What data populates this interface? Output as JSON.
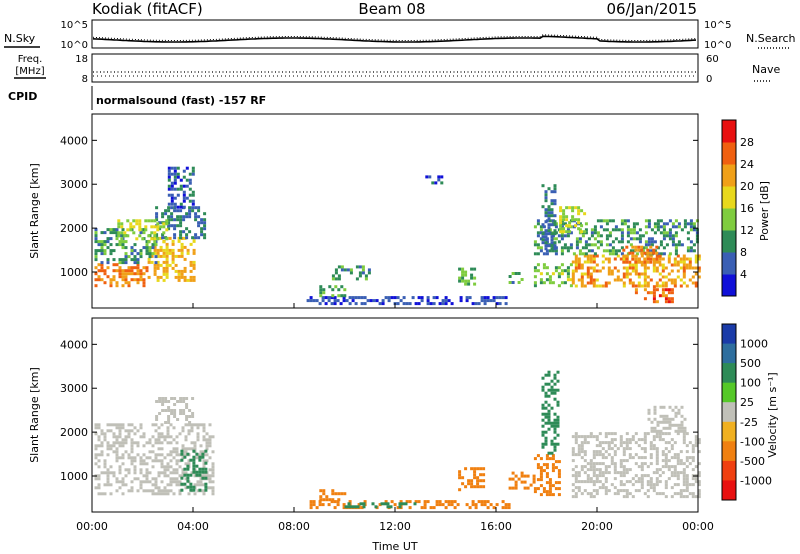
{
  "header": {
    "station": "Kodiak (fitACF)",
    "beam": "Beam 08",
    "date": "06/Jan/2015"
  },
  "status_panels": {
    "nsky_label": "N.Sky",
    "nsearch_label": "N.Search",
    "freq_label_line1": "Freq.",
    "freq_label_line2": "[MHz]",
    "nave_label": "Nave",
    "cpid_label": "CPID",
    "noise_ticks": [
      "10^5",
      "10^0"
    ],
    "freq_ticks": [
      "18",
      "8"
    ],
    "nave_ticks": [
      "60",
      "0"
    ],
    "cpid_text": "normalsound (fast) -157 RF"
  },
  "chart_data": [
    {
      "type": "heatmap",
      "title": "",
      "xlabel": "",
      "ylabel": "Slant Range [km]",
      "xlim": [
        0,
        24
      ],
      "ylim": [
        180,
        4600
      ],
      "x_ticks": [
        "00:00",
        "04:00",
        "08:00",
        "12:00",
        "16:00",
        "20:00",
        "00:00"
      ],
      "y_ticks": [
        "1000",
        "2000",
        "3000",
        "4000"
      ],
      "colorbar": {
        "label": "Power [dB]",
        "ticks": [
          "4",
          "8",
          "12",
          "16",
          "20",
          "24",
          "28"
        ],
        "colors": [
          "#1010d8",
          "#3a5fb4",
          "#2e8b57",
          "#7fcc3f",
          "#e8d81c",
          "#f0a018",
          "#f06010",
          "#e81010"
        ]
      },
      "regions": [
        {
          "t0": 0.1,
          "t1": 2.2,
          "r0": 700,
          "r1": 1200,
          "value": 26
        },
        {
          "t0": 2.2,
          "t1": 4.0,
          "r0": 800,
          "r1": 1800,
          "value": 22
        },
        {
          "t0": 0.1,
          "t1": 2.5,
          "r0": 1200,
          "r1": 2000,
          "value": 12
        },
        {
          "t0": 2.5,
          "t1": 4.5,
          "r0": 1800,
          "r1": 2500,
          "value": 10
        },
        {
          "t0": 3.0,
          "t1": 4.0,
          "r0": 2500,
          "r1": 3400,
          "value": 8
        },
        {
          "t0": 1.0,
          "t1": 3.0,
          "r0": 1700,
          "r1": 2200,
          "value": 18
        },
        {
          "t0": 8.5,
          "t1": 16.5,
          "r0": 250,
          "r1": 450,
          "value": 6
        },
        {
          "t0": 9.0,
          "t1": 10.0,
          "r0": 450,
          "r1": 700,
          "value": 14
        },
        {
          "t0": 9.5,
          "t1": 11.0,
          "r0": 850,
          "r1": 1150,
          "value": 12
        },
        {
          "t0": 13.2,
          "t1": 13.8,
          "r0": 3000,
          "r1": 3200,
          "value": 8
        },
        {
          "t0": 14.5,
          "t1": 15.2,
          "r0": 750,
          "r1": 1100,
          "value": 14
        },
        {
          "t0": 16.5,
          "t1": 17.0,
          "r0": 700,
          "r1": 1000,
          "value": 12
        },
        {
          "t0": 17.5,
          "t1": 19.0,
          "r0": 700,
          "r1": 1200,
          "value": 16
        },
        {
          "t0": 19.0,
          "t1": 24.0,
          "r0": 700,
          "r1": 1400,
          "value": 24
        },
        {
          "t0": 17.5,
          "t1": 24.0,
          "r0": 1400,
          "r1": 2200,
          "value": 12
        },
        {
          "t0": 18.5,
          "t1": 19.5,
          "r0": 1900,
          "r1": 2500,
          "value": 18
        },
        {
          "t0": 21.5,
          "t1": 23.0,
          "r0": 300,
          "r1": 700,
          "value": 28
        },
        {
          "t0": 21.0,
          "t1": 22.5,
          "r0": 1200,
          "r1": 1600,
          "value": 26
        },
        {
          "t0": 17.8,
          "t1": 18.3,
          "r0": 1500,
          "r1": 3000,
          "value": 10
        }
      ]
    },
    {
      "type": "heatmap",
      "title": "",
      "xlabel": "Time UT",
      "ylabel": "Slant Range [km]",
      "xlim": [
        0,
        24
      ],
      "ylim": [
        180,
        4600
      ],
      "x_ticks": [
        "00:00",
        "04:00",
        "08:00",
        "12:00",
        "16:00",
        "20:00",
        "00:00"
      ],
      "y_ticks": [
        "1000",
        "2000",
        "3000",
        "4000"
      ],
      "colorbar": {
        "label": "Velocity [m s⁻¹]",
        "ticks": [
          "1000",
          "500",
          "100",
          "25",
          "-25",
          "-100",
          "-500",
          "-1000"
        ],
        "colors": [
          "#1a3ba8",
          "#2e6e9e",
          "#2e8b57",
          "#55c828",
          "#c0c0b8",
          "#f0b020",
          "#f08010",
          "#f04010",
          "#e81010"
        ]
      },
      "regions": [
        {
          "t0": 0.1,
          "t1": 4.8,
          "r0": 600,
          "r1": 2200,
          "value": 0
        },
        {
          "t0": 3.5,
          "t1": 4.5,
          "r0": 700,
          "r1": 1600,
          "value": 120
        },
        {
          "t0": 2.5,
          "t1": 4.0,
          "r0": 2200,
          "r1": 2800,
          "value": 0
        },
        {
          "t0": 8.5,
          "t1": 16.5,
          "r0": 250,
          "r1": 450,
          "value": -300
        },
        {
          "t0": 10.0,
          "t1": 13.0,
          "r0": 280,
          "r1": 400,
          "value": 150
        },
        {
          "t0": 9.0,
          "t1": 10.0,
          "r0": 450,
          "r1": 700,
          "value": -200
        },
        {
          "t0": 14.5,
          "t1": 15.5,
          "r0": 700,
          "r1": 1200,
          "value": -400
        },
        {
          "t0": 16.5,
          "t1": 17.5,
          "r0": 700,
          "r1": 1100,
          "value": -300
        },
        {
          "t0": 17.5,
          "t1": 18.5,
          "r0": 600,
          "r1": 1500,
          "value": -150
        },
        {
          "t0": 17.8,
          "t1": 18.5,
          "r0": 1500,
          "r1": 3400,
          "value": 120
        },
        {
          "t0": 19.0,
          "t1": 24.0,
          "r0": 500,
          "r1": 2000,
          "value": 0
        },
        {
          "t0": 22.0,
          "t1": 23.5,
          "r0": 2000,
          "r1": 2600,
          "value": 0
        }
      ]
    }
  ]
}
